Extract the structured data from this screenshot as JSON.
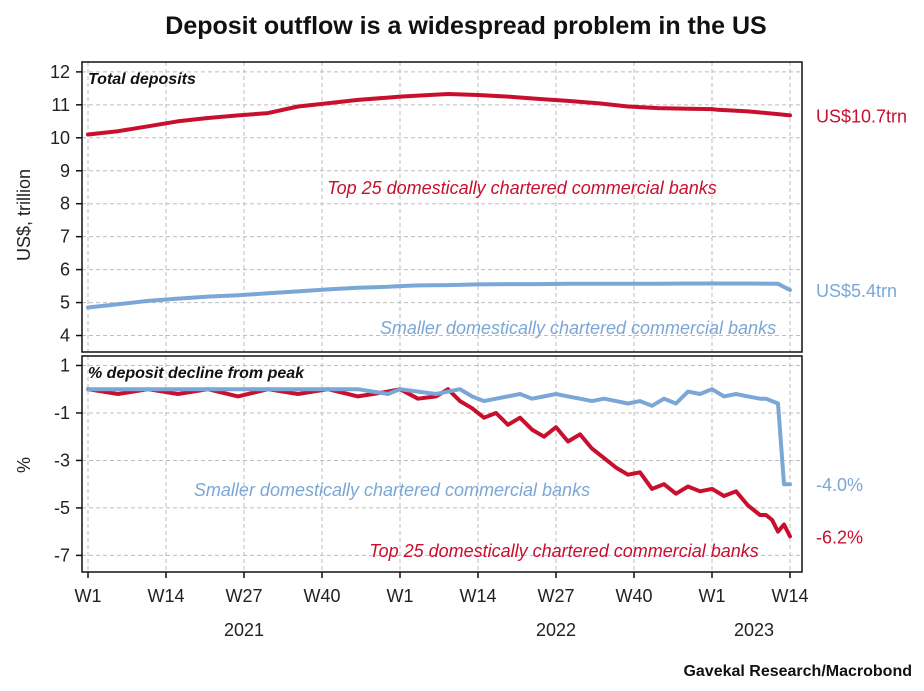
{
  "colors": {
    "red": "#c8102e",
    "blue": "#7ba7d6"
  },
  "title": "Deposit outflow is a widespread problem in the US",
  "source": "Gavekal Research/Macrobond",
  "chart_data": [
    {
      "type": "line",
      "panel_title": "Total deposits",
      "ylabel": "US$, trillion",
      "ylim": [
        3.5,
        12.3
      ],
      "yticks": [
        "12",
        "11",
        "10",
        "9",
        "8",
        "7",
        "6",
        "5",
        "4"
      ],
      "grid": true,
      "x": [
        0,
        5,
        10,
        15,
        20,
        25,
        30,
        35,
        40,
        45,
        50,
        52,
        55,
        60,
        65,
        70,
        75,
        80,
        85,
        90,
        95,
        100,
        104,
        105,
        110,
        115,
        117
      ],
      "series": [
        {
          "name": "Top 25 domestically chartered commercial banks",
          "color": "red",
          "end_label": "US$10.7trn",
          "values": [
            10.1,
            10.2,
            10.35,
            10.5,
            10.6,
            10.68,
            10.75,
            10.95,
            11.05,
            11.15,
            11.22,
            11.25,
            11.28,
            11.33,
            11.3,
            11.25,
            11.18,
            11.12,
            11.05,
            10.95,
            10.9,
            10.88,
            10.87,
            10.85,
            10.8,
            10.72,
            10.68
          ]
        },
        {
          "name": "Smaller domestically chartered commercial banks",
          "color": "blue",
          "end_label": "US$5.4trn",
          "values": [
            4.85,
            4.95,
            5.05,
            5.12,
            5.18,
            5.22,
            5.28,
            5.34,
            5.4,
            5.45,
            5.48,
            5.5,
            5.52,
            5.53,
            5.55,
            5.56,
            5.56,
            5.57,
            5.57,
            5.57,
            5.57,
            5.58,
            5.58,
            5.58,
            5.58,
            5.57,
            5.38
          ]
        }
      ]
    },
    {
      "type": "line",
      "panel_title": "% deposit decline from peak",
      "ylabel": "%",
      "ylim": [
        -7.7,
        1.4
      ],
      "yticks": [
        "1",
        "-1",
        "-3",
        "-5",
        "-7"
      ],
      "grid": true,
      "x": [
        0,
        5,
        10,
        15,
        20,
        25,
        30,
        35,
        40,
        45,
        50,
        52,
        55,
        58,
        60,
        62,
        64,
        66,
        68,
        70,
        72,
        74,
        76,
        78,
        80,
        82,
        84,
        86,
        88,
        90,
        92,
        94,
        96,
        98,
        100,
        102,
        104,
        106,
        108,
        110,
        112,
        113,
        114,
        115,
        116,
        117
      ],
      "series": [
        {
          "name": "Top 25 domestically chartered commercial banks",
          "color": "red",
          "end_label": "-6.2%",
          "values": [
            0,
            -0.2,
            0,
            -0.2,
            0,
            -0.3,
            0,
            -0.2,
            0,
            -0.3,
            -0.1,
            0,
            -0.4,
            -0.3,
            0,
            -0.5,
            -0.8,
            -1.2,
            -1.0,
            -1.5,
            -1.2,
            -1.7,
            -2.0,
            -1.6,
            -2.2,
            -1.9,
            -2.5,
            -2.9,
            -3.3,
            -3.6,
            -3.5,
            -4.2,
            -4.0,
            -4.4,
            -4.1,
            -4.3,
            -4.2,
            -4.5,
            -4.3,
            -4.9,
            -5.3,
            -5.3,
            -5.5,
            -6.0,
            -5.7,
            -6.2
          ]
        },
        {
          "name": "Smaller domestically chartered commercial banks",
          "color": "blue",
          "end_label": "-4.0%",
          "values": [
            0,
            0,
            0,
            0,
            0,
            0,
            0,
            0,
            0,
            0,
            -0.2,
            0,
            -0.1,
            -0.2,
            -0.1,
            0,
            -0.3,
            -0.5,
            -0.4,
            -0.3,
            -0.2,
            -0.4,
            -0.3,
            -0.2,
            -0.3,
            -0.4,
            -0.5,
            -0.4,
            -0.5,
            -0.6,
            -0.5,
            -0.7,
            -0.4,
            -0.6,
            -0.1,
            -0.2,
            0,
            -0.3,
            -0.2,
            -0.3,
            -0.4,
            -0.4,
            -0.5,
            -0.6,
            -4.0,
            -4.0
          ]
        }
      ]
    }
  ],
  "x_axis": {
    "ticks": [
      {
        "pos": 0,
        "label": "W1"
      },
      {
        "pos": 13,
        "label": "W14"
      },
      {
        "pos": 26,
        "label": "W27"
      },
      {
        "pos": 39,
        "label": "W40"
      },
      {
        "pos": 52,
        "label": "W1"
      },
      {
        "pos": 65,
        "label": "W14"
      },
      {
        "pos": 78,
        "label": "W27"
      },
      {
        "pos": 91,
        "label": "W40"
      },
      {
        "pos": 104,
        "label": "W1"
      },
      {
        "pos": 117,
        "label": "W14"
      }
    ],
    "years": [
      {
        "pos": 26,
        "label": "2021"
      },
      {
        "pos": 78,
        "label": "2022"
      },
      {
        "pos": 111,
        "label": "2023"
      }
    ]
  }
}
